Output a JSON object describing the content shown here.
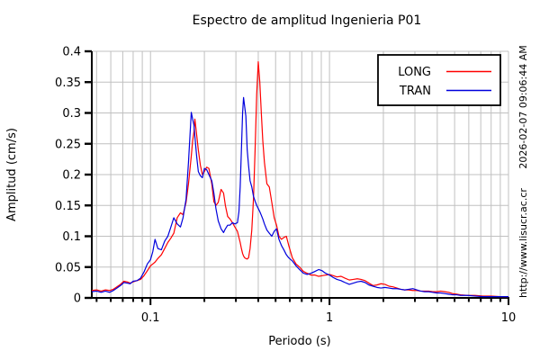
{
  "chart_data": {
    "type": "line",
    "title": "Espectro de amplitud Ingenieria P01",
    "xlabel": "Periodo (s)",
    "ylabel": "Amplitud (cm/s)",
    "x_scale": "log",
    "xlim": [
      0.047,
      10
    ],
    "ylim": [
      0,
      0.4
    ],
    "grid": true,
    "legend_position": "top-right",
    "watermark_url": "http://www.lisucr.ac.cr",
    "timestamp": "2026-02-07 09:06:44 AM",
    "x_major_ticks": [
      0.1,
      1,
      10
    ],
    "x_major_tick_labels": [
      "0.1",
      "1",
      "10"
    ],
    "y_ticks": [
      0,
      0.05,
      0.1,
      0.15,
      0.2,
      0.25,
      0.3,
      0.35,
      0.4
    ],
    "y_tick_labels": [
      "0",
      "0.05",
      "0.1",
      "0.15",
      "0.2",
      "0.25",
      "0.3",
      "0.35",
      "0.4"
    ],
    "grid_color": "#c0c0c0",
    "x": [
      0.047,
      0.05,
      0.053,
      0.056,
      0.059,
      0.062,
      0.065,
      0.068,
      0.071,
      0.074,
      0.077,
      0.08,
      0.084,
      0.088,
      0.092,
      0.096,
      0.1,
      0.103,
      0.106,
      0.11,
      0.115,
      0.12,
      0.125,
      0.13,
      0.135,
      0.141,
      0.147,
      0.152,
      0.158,
      0.163,
      0.169,
      0.172,
      0.175,
      0.177,
      0.181,
      0.185,
      0.19,
      0.195,
      0.2,
      0.206,
      0.212,
      0.22,
      0.226,
      0.232,
      0.239,
      0.248,
      0.256,
      0.262,
      0.27,
      0.278,
      0.287,
      0.296,
      0.306,
      0.312,
      0.317,
      0.322,
      0.327,
      0.331,
      0.336,
      0.341,
      0.347,
      0.353,
      0.36,
      0.368,
      0.376,
      0.384,
      0.392,
      0.4,
      0.408,
      0.416,
      0.424,
      0.433,
      0.447,
      0.461,
      0.476,
      0.491,
      0.506,
      0.522,
      0.539,
      0.556,
      0.574,
      0.592,
      0.62,
      0.65,
      0.68,
      0.715,
      0.75,
      0.79,
      0.83,
      0.87,
      0.91,
      0.95,
      1.0,
      1.05,
      1.1,
      1.16,
      1.22,
      1.29,
      1.36,
      1.43,
      1.5,
      1.58,
      1.66,
      1.75,
      1.84,
      1.94,
      2.04,
      2.15,
      2.26,
      2.38,
      2.5,
      2.63,
      2.77,
      2.92,
      3.07,
      3.23,
      3.4,
      3.58,
      3.77,
      3.97,
      4.18,
      4.4,
      4.63,
      4.87,
      5.13,
      5.4,
      5.9,
      6.5,
      7.2,
      8.0,
      9.0,
      10.0
    ],
    "series": [
      {
        "name": "LONG",
        "color": "#ff0000",
        "y": [
          0.012,
          0.013,
          0.011,
          0.013,
          0.012,
          0.014,
          0.018,
          0.022,
          0.027,
          0.026,
          0.024,
          0.026,
          0.028,
          0.03,
          0.036,
          0.044,
          0.052,
          0.055,
          0.058,
          0.064,
          0.07,
          0.08,
          0.09,
          0.097,
          0.105,
          0.13,
          0.138,
          0.135,
          0.155,
          0.185,
          0.23,
          0.255,
          0.27,
          0.29,
          0.265,
          0.24,
          0.215,
          0.2,
          0.205,
          0.212,
          0.21,
          0.185,
          0.156,
          0.15,
          0.155,
          0.176,
          0.17,
          0.15,
          0.132,
          0.128,
          0.122,
          0.115,
          0.108,
          0.098,
          0.09,
          0.08,
          0.072,
          0.068,
          0.065,
          0.064,
          0.063,
          0.065,
          0.08,
          0.11,
          0.16,
          0.24,
          0.33,
          0.383,
          0.35,
          0.3,
          0.255,
          0.22,
          0.185,
          0.18,
          0.155,
          0.13,
          0.118,
          0.1,
          0.095,
          0.098,
          0.1,
          0.085,
          0.065,
          0.055,
          0.05,
          0.043,
          0.04,
          0.037,
          0.037,
          0.035,
          0.036,
          0.037,
          0.038,
          0.036,
          0.034,
          0.035,
          0.032,
          0.029,
          0.03,
          0.031,
          0.03,
          0.028,
          0.024,
          0.02,
          0.021,
          0.023,
          0.022,
          0.019,
          0.018,
          0.016,
          0.014,
          0.013,
          0.013,
          0.012,
          0.012,
          0.011,
          0.011,
          0.011,
          0.01,
          0.01,
          0.011,
          0.01,
          0.009,
          0.007,
          0.006,
          0.005,
          0.004,
          0.004,
          0.003,
          0.003,
          0.002,
          0.002
        ]
      },
      {
        "name": "TRAN",
        "color": "#0000dd",
        "y": [
          0.01,
          0.011,
          0.009,
          0.011,
          0.009,
          0.012,
          0.016,
          0.02,
          0.025,
          0.024,
          0.023,
          0.027,
          0.028,
          0.032,
          0.042,
          0.055,
          0.062,
          0.075,
          0.095,
          0.08,
          0.078,
          0.092,
          0.1,
          0.115,
          0.13,
          0.12,
          0.115,
          0.13,
          0.16,
          0.22,
          0.301,
          0.29,
          0.28,
          0.262,
          0.23,
          0.205,
          0.198,
          0.195,
          0.21,
          0.208,
          0.2,
          0.19,
          0.17,
          0.145,
          0.125,
          0.112,
          0.106,
          0.112,
          0.118,
          0.118,
          0.122,
          0.12,
          0.122,
          0.14,
          0.18,
          0.24,
          0.3,
          0.325,
          0.31,
          0.295,
          0.24,
          0.215,
          0.19,
          0.18,
          0.165,
          0.157,
          0.15,
          0.145,
          0.14,
          0.134,
          0.128,
          0.12,
          0.11,
          0.105,
          0.1,
          0.108,
          0.112,
          0.095,
          0.085,
          0.078,
          0.07,
          0.065,
          0.06,
          0.052,
          0.046,
          0.04,
          0.038,
          0.04,
          0.043,
          0.046,
          0.044,
          0.04,
          0.037,
          0.033,
          0.03,
          0.028,
          0.025,
          0.022,
          0.024,
          0.026,
          0.027,
          0.025,
          0.021,
          0.019,
          0.017,
          0.016,
          0.017,
          0.016,
          0.015,
          0.015,
          0.014,
          0.013,
          0.014,
          0.015,
          0.013,
          0.011,
          0.01,
          0.01,
          0.009,
          0.008,
          0.008,
          0.007,
          0.006,
          0.005,
          0.005,
          0.004,
          0.004,
          0.003,
          0.002,
          0.002,
          0.002,
          0.002
        ]
      }
    ]
  }
}
